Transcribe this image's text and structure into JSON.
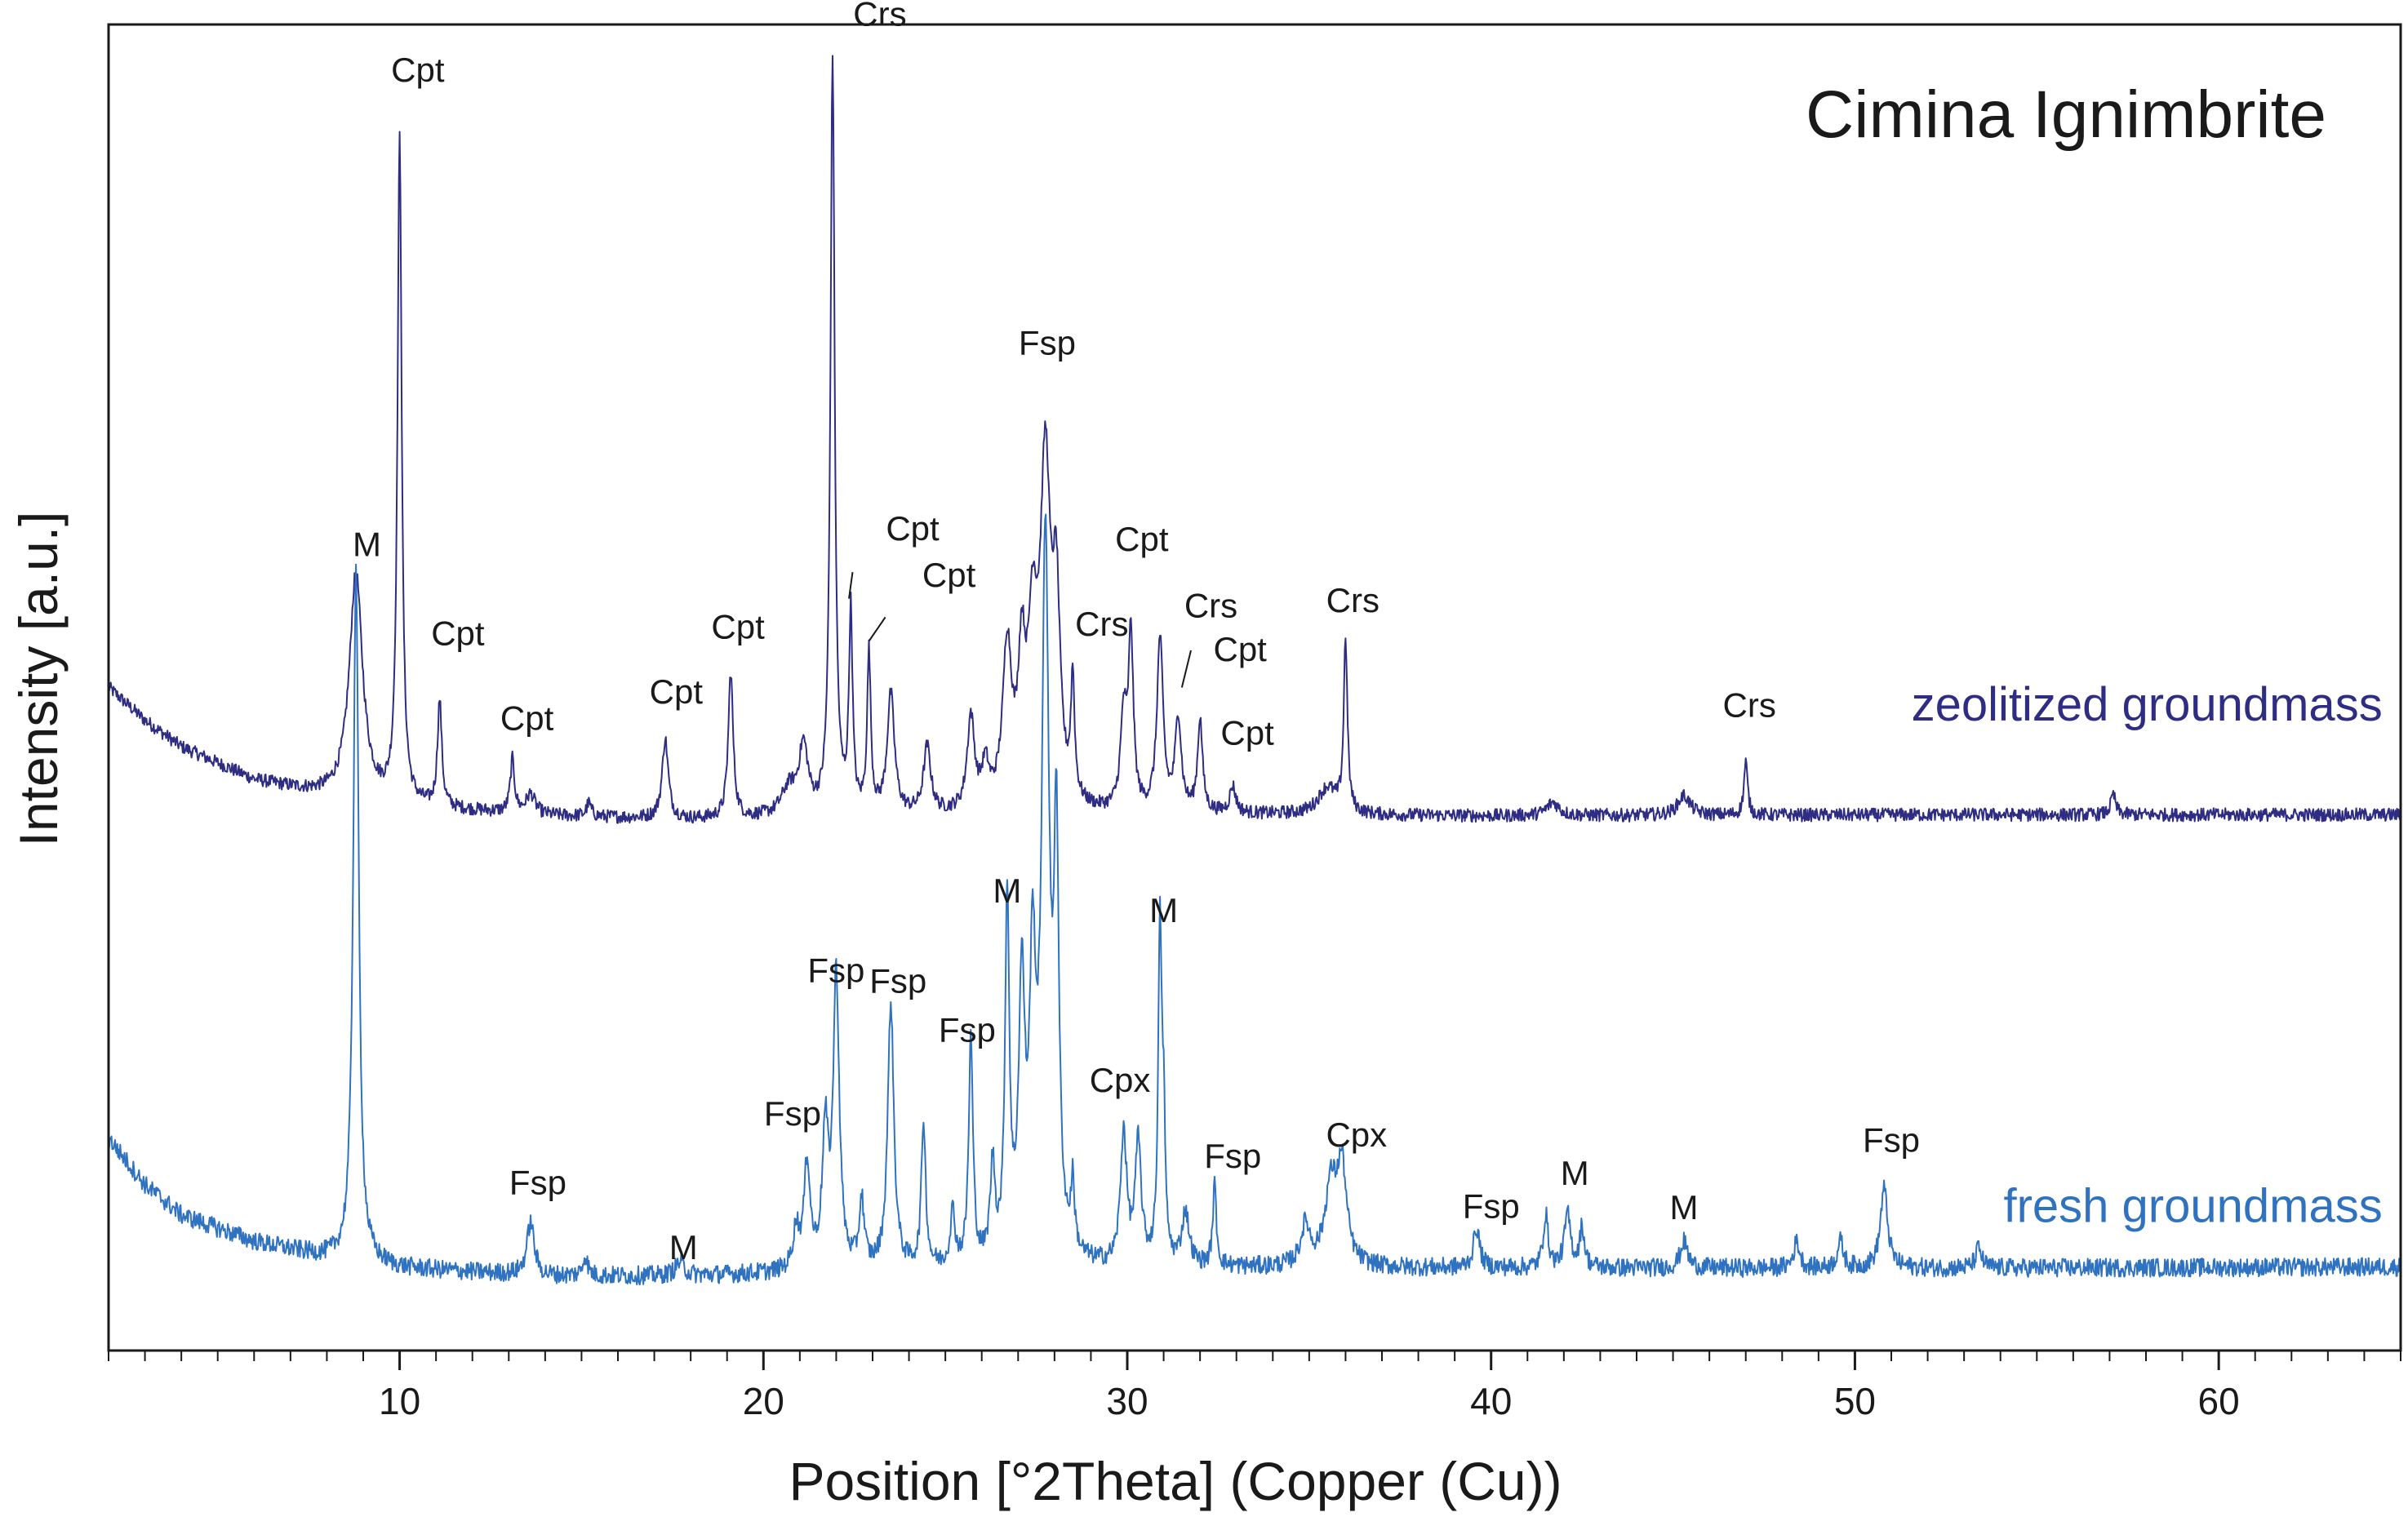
{
  "chart_data": {
    "type": "line",
    "title": "Cimina Ignimbrite",
    "xlabel": "Position [°2Theta] (Copper (Cu))",
    "ylabel": "Intensity [a.u.]",
    "xlim": [
      2,
      65
    ],
    "ylim": [
      0,
      100
    ],
    "x_ticks": [
      10,
      20,
      30,
      40,
      50,
      60
    ],
    "x_tick_labels": [
      "10",
      "20",
      "30",
      "40",
      "50",
      "60"
    ],
    "minor_tick_step": 1,
    "series": [
      {
        "name": "zeolitized groundmass",
        "color": "#2e2d83",
        "baseline": [
          [
            2,
            50.0
          ],
          [
            3,
            47.5
          ],
          [
            4,
            45.5
          ],
          [
            6,
            43.0
          ],
          [
            8,
            41.8
          ],
          [
            10,
            41.0
          ],
          [
            14,
            40.3
          ],
          [
            18,
            40.0
          ],
          [
            24,
            40.2
          ],
          [
            32,
            40.4
          ],
          [
            40,
            40.3
          ],
          [
            52,
            40.4
          ],
          [
            65,
            40.4
          ]
        ],
        "noise": 0.5,
        "peaks": [
          {
            "x": 8.8,
            "h": 17,
            "w": 0.22
          },
          {
            "x": 10.0,
            "h": 50,
            "w": 0.07
          },
          {
            "x": 11.1,
            "h": 8,
            "w": 0.07
          },
          {
            "x": 13.1,
            "h": 4,
            "w": 0.07
          },
          {
            "x": 13.6,
            "h": 1.5,
            "w": 0.15
          },
          {
            "x": 15.2,
            "h": 1.0,
            "w": 0.08
          },
          {
            "x": 17.3,
            "h": 6,
            "w": 0.1
          },
          {
            "x": 19.1,
            "h": 11,
            "w": 0.08
          },
          {
            "x": 20.7,
            "h": 2,
            "w": 0.25
          },
          {
            "x": 21.1,
            "h": 5,
            "w": 0.15
          },
          {
            "x": 21.9,
            "h": 57,
            "w": 0.07
          },
          {
            "x": 22.4,
            "h": 15,
            "w": 0.06
          },
          {
            "x": 22.9,
            "h": 12,
            "w": 0.06
          },
          {
            "x": 23.5,
            "h": 9,
            "w": 0.12
          },
          {
            "x": 24.5,
            "h": 5,
            "w": 0.12
          },
          {
            "x": 25.7,
            "h": 7,
            "w": 0.12
          },
          {
            "x": 26.1,
            "h": 3,
            "w": 0.12
          },
          {
            "x": 26.7,
            "h": 12,
            "w": 0.15
          },
          {
            "x": 27.1,
            "h": 10,
            "w": 0.12
          },
          {
            "x": 27.4,
            "h": 12,
            "w": 0.15
          },
          {
            "x": 27.75,
            "h": 25,
            "w": 0.17
          },
          {
            "x": 28.05,
            "h": 14,
            "w": 0.12
          },
          {
            "x": 28.5,
            "h": 9,
            "w": 0.06
          },
          {
            "x": 29.9,
            "h": 7,
            "w": 0.1
          },
          {
            "x": 30.1,
            "h": 13,
            "w": 0.08
          },
          {
            "x": 30.9,
            "h": 13,
            "w": 0.1
          },
          {
            "x": 31.4,
            "h": 7,
            "w": 0.1
          },
          {
            "x": 32.0,
            "h": 7,
            "w": 0.08
          },
          {
            "x": 32.9,
            "h": 2,
            "w": 0.1
          },
          {
            "x": 35.5,
            "h": 2,
            "w": 0.3
          },
          {
            "x": 36.0,
            "h": 13,
            "w": 0.06
          },
          {
            "x": 41.7,
            "h": 1,
            "w": 0.2
          },
          {
            "x": 45.3,
            "h": 1.5,
            "w": 0.2
          },
          {
            "x": 47.0,
            "h": 4,
            "w": 0.06
          },
          {
            "x": 57.1,
            "h": 1.5,
            "w": 0.08
          }
        ]
      },
      {
        "name": "fresh groundmass",
        "color": "#2f72c0",
        "baseline": [
          [
            2,
            16.0
          ],
          [
            3,
            12.5
          ],
          [
            4,
            10.2
          ],
          [
            6,
            8.2
          ],
          [
            8,
            7.0
          ],
          [
            10,
            6.2
          ],
          [
            14,
            5.6
          ],
          [
            18,
            5.6
          ],
          [
            24,
            6.0
          ],
          [
            32,
            6.2
          ],
          [
            40,
            6.2
          ],
          [
            52,
            6.2
          ],
          [
            65,
            6.3
          ]
        ],
        "noise": 0.7,
        "peaks": [
          {
            "x": 8.8,
            "h": 52,
            "w": 0.09
          },
          {
            "x": 13.6,
            "h": 4,
            "w": 0.12
          },
          {
            "x": 15.1,
            "h": 1.5,
            "w": 0.08
          },
          {
            "x": 17.7,
            "h": 1,
            "w": 0.15
          },
          {
            "x": 20.9,
            "h": 3,
            "w": 0.1
          },
          {
            "x": 21.2,
            "h": 8,
            "w": 0.1
          },
          {
            "x": 21.7,
            "h": 10,
            "w": 0.1
          },
          {
            "x": 22.0,
            "h": 22,
            "w": 0.1
          },
          {
            "x": 22.7,
            "h": 5,
            "w": 0.08
          },
          {
            "x": 23.5,
            "h": 20,
            "w": 0.1
          },
          {
            "x": 24.4,
            "h": 11,
            "w": 0.07
          },
          {
            "x": 25.2,
            "h": 4,
            "w": 0.08
          },
          {
            "x": 25.7,
            "h": 17,
            "w": 0.07
          },
          {
            "x": 26.3,
            "h": 7,
            "w": 0.08
          },
          {
            "x": 26.7,
            "h": 27,
            "w": 0.07
          },
          {
            "x": 27.1,
            "h": 20,
            "w": 0.1
          },
          {
            "x": 27.4,
            "h": 20,
            "w": 0.1
          },
          {
            "x": 27.75,
            "h": 53,
            "w": 0.12
          },
          {
            "x": 28.05,
            "h": 30,
            "w": 0.08
          },
          {
            "x": 28.5,
            "h": 5,
            "w": 0.06
          },
          {
            "x": 29.9,
            "h": 10,
            "w": 0.1
          },
          {
            "x": 30.3,
            "h": 9,
            "w": 0.1
          },
          {
            "x": 30.9,
            "h": 25,
            "w": 0.06
          },
          {
            "x": 31.0,
            "h": 9,
            "w": 0.05
          },
          {
            "x": 31.6,
            "h": 4,
            "w": 0.12
          },
          {
            "x": 32.4,
            "h": 6,
            "w": 0.06
          },
          {
            "x": 34.9,
            "h": 3,
            "w": 0.15
          },
          {
            "x": 35.6,
            "h": 6,
            "w": 0.2
          },
          {
            "x": 35.9,
            "h": 7,
            "w": 0.15
          },
          {
            "x": 39.6,
            "h": 3,
            "w": 0.1
          },
          {
            "x": 41.5,
            "h": 4,
            "w": 0.08
          },
          {
            "x": 42.1,
            "h": 4,
            "w": 0.1
          },
          {
            "x": 42.5,
            "h": 3,
            "w": 0.08
          },
          {
            "x": 45.3,
            "h": 2,
            "w": 0.12
          },
          {
            "x": 48.4,
            "h": 2,
            "w": 0.1
          },
          {
            "x": 49.6,
            "h": 2,
            "w": 0.1
          },
          {
            "x": 50.8,
            "h": 6,
            "w": 0.12
          },
          {
            "x": 53.4,
            "h": 1.5,
            "w": 0.1
          }
        ]
      }
    ],
    "peak_labels": [
      {
        "text": "Cpt",
        "x": 10.5,
        "y": 95.7
      },
      {
        "text": "Crs",
        "x": 23.2,
        "y": 99.9
      },
      {
        "text": "M",
        "x": 9.1,
        "y": 59.9
      },
      {
        "text": "Cpt",
        "x": 11.6,
        "y": 53.2
      },
      {
        "text": "Cpt",
        "x": 13.5,
        "y": 46.8
      },
      {
        "text": "Cpt",
        "x": 17.6,
        "y": 48.8
      },
      {
        "text": "Cpt",
        "x": 19.3,
        "y": 53.7
      },
      {
        "text": "Fsp",
        "x": 27.8,
        "y": 75.1
      },
      {
        "text": "Cpt",
        "x": 24.1,
        "y": 61.1
      },
      {
        "text": "Cpt",
        "x": 25.1,
        "y": 57.6
      },
      {
        "text": "Cpt",
        "x": 30.4,
        "y": 60.3
      },
      {
        "text": "Crs",
        "x": 29.3,
        "y": 53.9
      },
      {
        "text": "Crs",
        "x": 32.3,
        "y": 55.3
      },
      {
        "text": "Cpt",
        "x": 33.1,
        "y": 52.0
      },
      {
        "text": "Crs",
        "x": 36.2,
        "y": 55.7
      },
      {
        "text": "Cpt",
        "x": 33.3,
        "y": 45.7
      },
      {
        "text": "Crs",
        "x": 47.1,
        "y": 47.8
      },
      {
        "text": "M",
        "x": 26.7,
        "y": 33.8
      },
      {
        "text": "M",
        "x": 31.0,
        "y": 32.3
      },
      {
        "text": "Fsp",
        "x": 22.0,
        "y": 27.8
      },
      {
        "text": "Fsp",
        "x": 23.7,
        "y": 27.0
      },
      {
        "text": "Fsp",
        "x": 25.6,
        "y": 23.3
      },
      {
        "text": "Fsp",
        "x": 20.8,
        "y": 17.0
      },
      {
        "text": "Cpx",
        "x": 29.8,
        "y": 19.5
      },
      {
        "text": "Fsp",
        "x": 32.9,
        "y": 13.8
      },
      {
        "text": "Cpx",
        "x": 36.3,
        "y": 15.4
      },
      {
        "text": "Fsp",
        "x": 13.8,
        "y": 11.8
      },
      {
        "text": "M",
        "x": 17.8,
        "y": 6.9
      },
      {
        "text": "Fsp",
        "x": 40.0,
        "y": 10.0
      },
      {
        "text": "M",
        "x": 42.3,
        "y": 12.5
      },
      {
        "text": "M",
        "x": 45.3,
        "y": 9.9
      },
      {
        "text": "Fsp",
        "x": 51.0,
        "y": 15.0
      }
    ],
    "leader_lines": [
      {
        "from": [
          22.45,
          58.7
        ],
        "to": [
          22.35,
          56.7
        ]
      },
      {
        "from": [
          23.35,
          55.3
        ],
        "to": [
          22.9,
          53.5
        ]
      },
      {
        "from": [
          31.75,
          52.8
        ],
        "to": [
          31.5,
          50.0
        ]
      }
    ],
    "series_labels": [
      {
        "text": "zeolitized groundmass",
        "x": 64.5,
        "y": 47.5
      },
      {
        "text": "fresh groundmass",
        "x": 64.5,
        "y": 9.7
      }
    ]
  }
}
